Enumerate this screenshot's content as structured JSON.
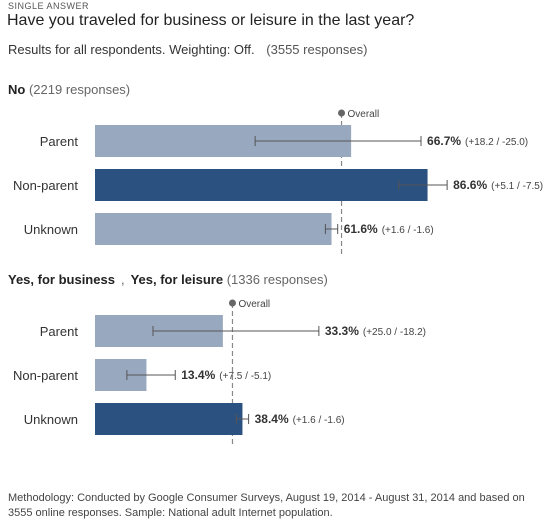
{
  "header": {
    "kicker": "SINGLE ANSWER",
    "title": "Have you traveled for business or leisure in the last year?",
    "results_text": "Results for all respondents. Weighting: Off.",
    "responses_text": "(3555 responses)"
  },
  "overall_label": "Overall",
  "methodology": "Methodology: Conducted by Google Consumer Surveys, August 19, 2014 - August 31, 2014 and based on 3555 online responses. Sample: National adult Internet population.",
  "colors": {
    "light_bar": "#98a9bf",
    "dark_bar": "#2a5180",
    "whisker": "#555555",
    "overall_line": "#888888"
  },
  "sections": [
    {
      "label_parts": [
        "No"
      ],
      "responses": "(2219 responses)"
    },
    {
      "label_parts": [
        "Yes, for business",
        ",",
        "Yes, for leisure"
      ],
      "responses": "(1336 responses)"
    }
  ],
  "chart_data": {
    "type": "bar",
    "orientation": "horizontal",
    "x_unit": "percent",
    "panels": [
      {
        "name": "No",
        "responses": 2219,
        "overall": 64.2,
        "categories": [
          "Parent",
          "Non-parent",
          "Unknown"
        ],
        "values": [
          66.7,
          86.6,
          61.6
        ],
        "ci_plus": [
          18.2,
          5.1,
          1.6
        ],
        "ci_minus": [
          25.0,
          7.5,
          1.6
        ],
        "highlight": [
          false,
          true,
          false
        ],
        "value_labels": [
          "66.7%",
          "86.6%",
          "61.6%"
        ],
        "ci_labels": [
          "(+18.2 / -25.0)",
          "(+5.1 / -7.5)",
          "(+1.6 / -1.6)"
        ]
      },
      {
        "name": "Yes, for business, Yes, for leisure",
        "responses": 1336,
        "overall": 35.8,
        "categories": [
          "Parent",
          "Non-parent",
          "Unknown"
        ],
        "values": [
          33.3,
          13.4,
          38.4
        ],
        "ci_plus": [
          25.0,
          7.5,
          1.6
        ],
        "ci_minus": [
          18.2,
          5.1,
          1.6
        ],
        "highlight": [
          false,
          false,
          true
        ],
        "value_labels": [
          "33.3%",
          "13.4%",
          "38.4%"
        ],
        "ci_labels": [
          "(+25.0 / -18.2)",
          "(+7.5 / -5.1)",
          "(+1.6 / -1.6)"
        ]
      }
    ]
  }
}
